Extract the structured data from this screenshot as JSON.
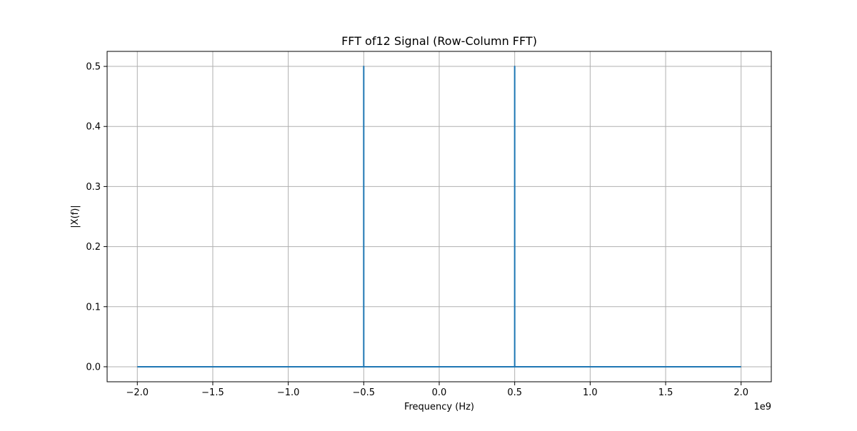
{
  "chart_data": {
    "type": "line",
    "title": "FFT of12 Signal (Row-Column FFT)",
    "xlabel": "Frequency (Hz)",
    "ylabel": "|X(f)|",
    "x_offset_label": "1e9",
    "xlim": [
      -2.2,
      2.2
    ],
    "ylim": [
      -0.025,
      0.525
    ],
    "x_ticks": [
      -2.0,
      -1.5,
      -1.0,
      -0.5,
      0.0,
      0.5,
      1.0,
      1.5,
      2.0
    ],
    "x_tick_labels": [
      "−2.0",
      "−1.5",
      "−1.0",
      "−0.5",
      "0.0",
      "0.5",
      "1.0",
      "1.5",
      "2.0"
    ],
    "y_ticks": [
      0.0,
      0.1,
      0.2,
      0.3,
      0.4,
      0.5
    ],
    "y_tick_labels": [
      "0.0",
      "0.1",
      "0.2",
      "0.3",
      "0.4",
      "0.5"
    ],
    "grid": true,
    "series": [
      {
        "color": "#1f77b4",
        "x": [
          -2.0,
          -0.5,
          -0.5,
          -0.5,
          0.5,
          0.5,
          0.5,
          2.0
        ],
        "y": [
          0.0,
          0.0,
          0.5,
          0.0,
          0.0,
          0.5,
          0.0,
          0.0
        ]
      }
    ]
  }
}
